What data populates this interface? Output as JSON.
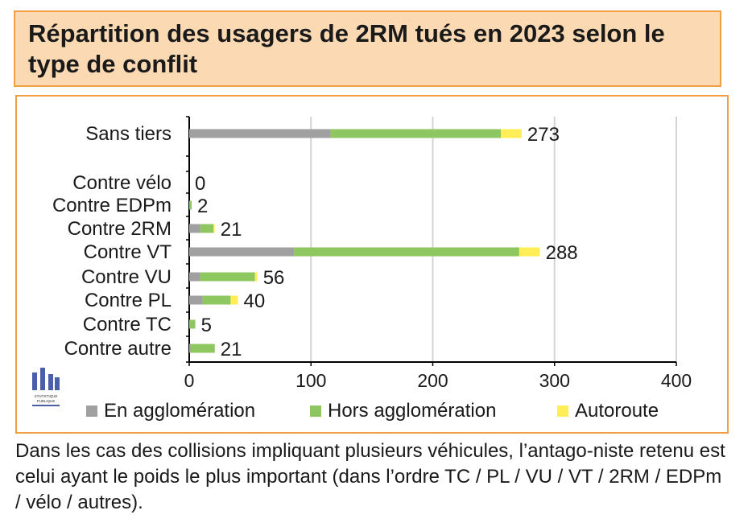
{
  "title": "Répartition des usagers de 2RM tués en 2023 selon le type de conflit",
  "footnote": "Dans les cas des collisions impliquant plusieurs véhicules, l’antago-niste retenu est celui ayant le poids le plus important (dans l’ordre TC / PL / VU / VT / 2RM / EDPm / vélo / autres).",
  "logo": {
    "text_line1": "STATISTIQUE",
    "text_line2": "PUBLIQUE",
    "icon": "statistique-publique-logo"
  },
  "chart_data": {
    "type": "bar",
    "orientation": "horizontal",
    "stacked": true,
    "categories": [
      "Sans tiers",
      "Contre vélo",
      "Contre EDPm",
      "Contre 2RM",
      "Contre VT",
      "Contre VU",
      "Contre PL",
      "Contre TC",
      "Contre autre"
    ],
    "series": [
      {
        "name": "En agglomération",
        "color": "#a0a0a0",
        "values": [
          116,
          0,
          0,
          9,
          86,
          9,
          11,
          0,
          1
        ]
      },
      {
        "name": "Hors agglomération",
        "color": "#8ec760",
        "values": [
          140,
          0,
          2,
          11,
          185,
          45,
          23,
          5,
          20
        ]
      },
      {
        "name": "Autoroute",
        "color": "#ffee55",
        "values": [
          17,
          0,
          0,
          1,
          17,
          2,
          6,
          0,
          0
        ]
      }
    ],
    "totals": [
      273,
      0,
      2,
      21,
      288,
      56,
      40,
      5,
      21
    ],
    "xlim": [
      0,
      400
    ],
    "xticks": [
      0,
      100,
      200,
      300,
      400
    ],
    "grid": true,
    "legend": "bottom"
  }
}
